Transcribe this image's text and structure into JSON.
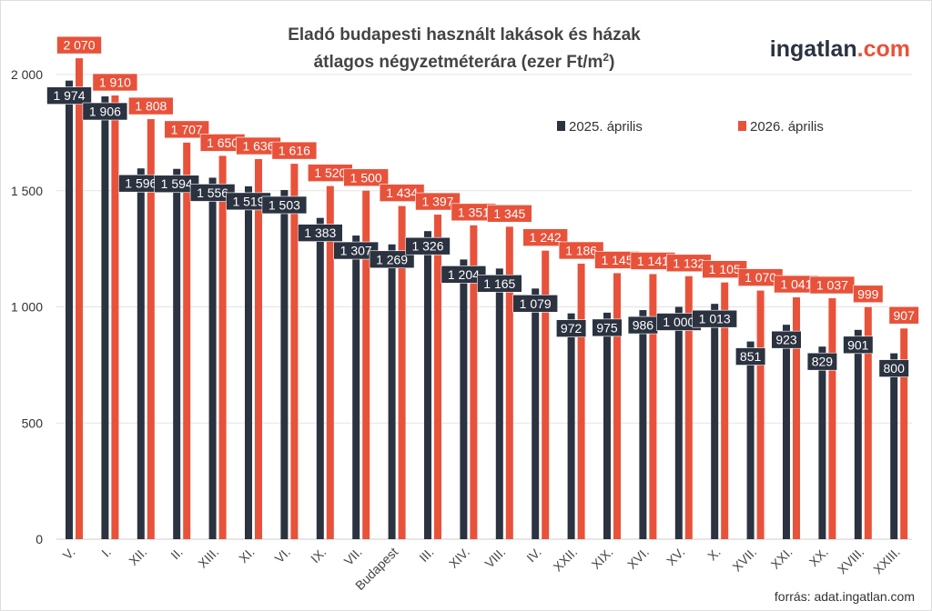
{
  "logo": {
    "name_part": "ingatlan",
    "tld_part": ".com"
  },
  "source": "forrás: adat.ingatlan.com",
  "colors": {
    "series_2025": "#2b3240",
    "series_2026": "#e8523a",
    "grid": "#e3e3e3",
    "text": "#444444"
  },
  "chart_data": {
    "type": "bar",
    "title": [
      "Eladó budapesti használt lakások és házak",
      "átlagos négyzetméterára (ezer Ft/m",
      "2",
      ")"
    ],
    "categories": [
      "V.",
      "I.",
      "XII.",
      "II.",
      "XIII.",
      "XI.",
      "VI.",
      "IX.",
      "VII.",
      "Budapest",
      "III.",
      "XIV.",
      "VIII.",
      "IV.",
      "XXII.",
      "XIX.",
      "XVI.",
      "XV.",
      "X.",
      "XVII.",
      "XXI.",
      "XX.",
      "XVIII.",
      "XXIII."
    ],
    "series": [
      {
        "name": "2025. április",
        "values": [
          1974,
          1906,
          1596,
          1594,
          1556,
          1519,
          1503,
          1383,
          1307,
          1269,
          1326,
          1204,
          1165,
          1079,
          972,
          975,
          986,
          1000,
          1013,
          851,
          923,
          829,
          901,
          800
        ],
        "labels": [
          "1 974",
          "1 906",
          "1 596",
          "1 594",
          "1 556",
          "1 519",
          "1 503",
          "1 383",
          "1 307",
          "1 269",
          "1 326",
          "1 204",
          "1 165",
          "1 079",
          "972",
          "975",
          "986",
          "1 000",
          "1 013",
          "851",
          "923",
          "829",
          "901",
          "800"
        ]
      },
      {
        "name": "2026. április",
        "values": [
          2070,
          1910,
          1808,
          1707,
          1650,
          1636,
          1616,
          1520,
          1500,
          1434,
          1397,
          1351,
          1345,
          1242,
          1186,
          1145,
          1141,
          1132,
          1105,
          1070,
          1041,
          1037,
          999,
          907
        ],
        "labels": [
          "2 070",
          "1 910",
          "1 808",
          "1 707",
          "1 650",
          "1 636",
          "1 616",
          "1 520",
          "1 500",
          "1 434",
          "1 397",
          "1 351",
          "1 345",
          "1 242",
          "1 186",
          "1 145",
          "1 141",
          "1 132",
          "1 105",
          "1 070",
          "1 041",
          "1 037",
          "999",
          "907"
        ]
      }
    ],
    "yticks": [
      0,
      500,
      1000,
      1500,
      2000
    ],
    "ytick_labels": [
      "0",
      "500",
      "1 000",
      "1 500",
      "2 000"
    ],
    "ylim": [
      0,
      2000
    ],
    "grid": true,
    "legend": "top-right"
  }
}
